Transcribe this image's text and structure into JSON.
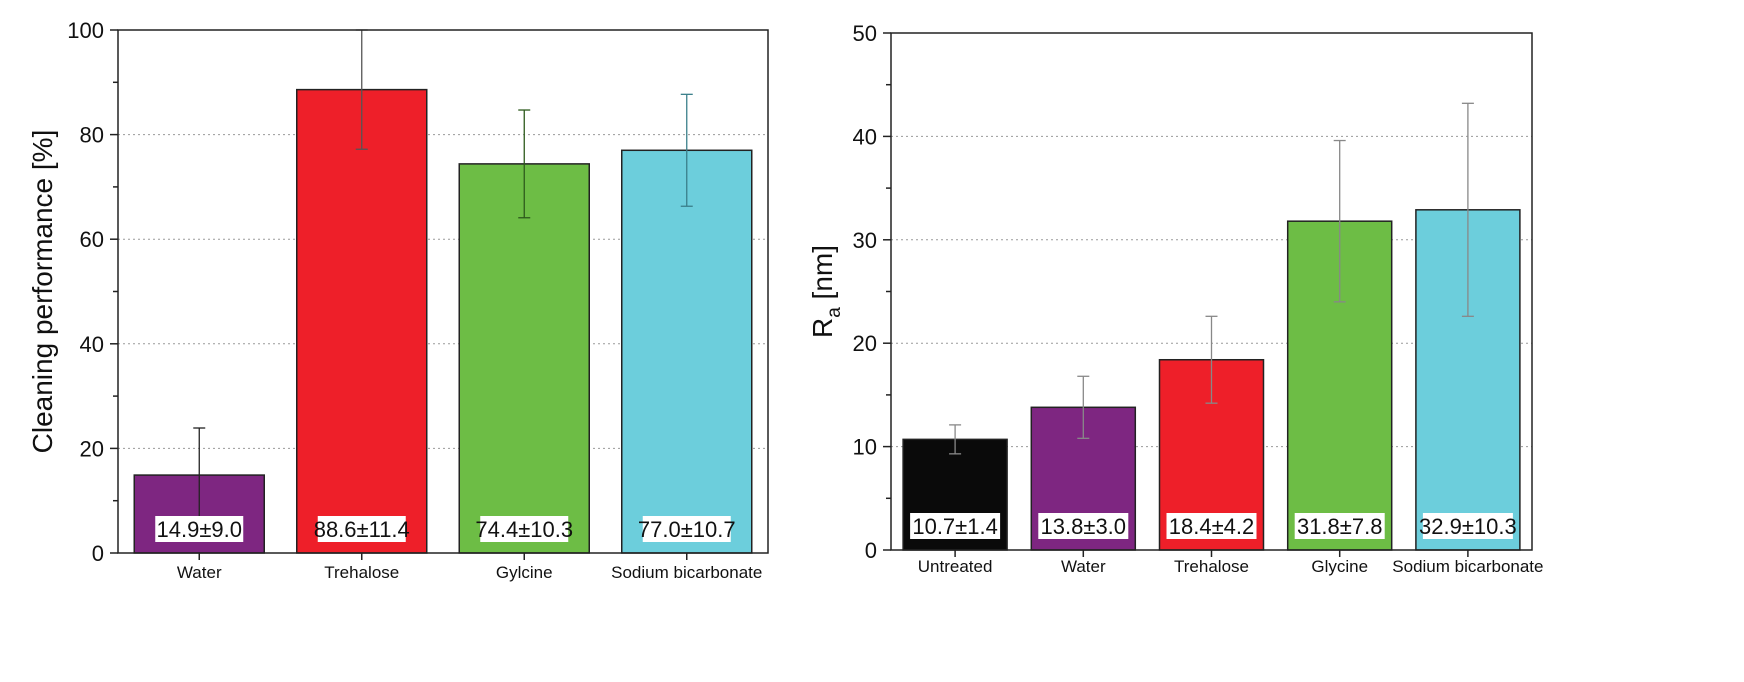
{
  "chart_data": [
    {
      "type": "bar",
      "title": "",
      "xlabel": "",
      "ylabel": "Cleaning performance [%]",
      "ylim": [
        0,
        100
      ],
      "yticks": [
        0,
        20,
        40,
        60,
        80,
        100
      ],
      "ytick_labels": [
        "0",
        "20",
        "40",
        "60",
        "80",
        "100"
      ],
      "minor_step": 10,
      "grid": true,
      "categories": [
        "Water",
        "Trehalose",
        "Gylcine",
        "Sodium bicarbonate"
      ],
      "values": [
        14.9,
        88.6,
        74.4,
        77.0
      ],
      "errors": [
        9.0,
        11.4,
        10.3,
        10.7
      ],
      "data_labels": [
        "14.9±9.0",
        "88.6±11.4",
        "74.4±10.3",
        "77.0±10.7"
      ],
      "colors": [
        "#7e2681",
        "#ee1f29",
        "#6dbd45",
        "#6ccedc"
      ],
      "error_colors": [
        "#222222",
        "#555555",
        "#2d5a1c",
        "#3a7f8a"
      ]
    },
    {
      "type": "bar",
      "title": "",
      "xlabel": "",
      "ylabel": "R",
      "ylabel_sub": "a",
      "ylabel_unit": " [nm]",
      "ylim": [
        0,
        50
      ],
      "yticks": [
        0,
        10,
        20,
        30,
        40,
        50
      ],
      "ytick_labels": [
        "0",
        "10",
        "20",
        "30",
        "40",
        "50"
      ],
      "minor_step": 5,
      "grid": true,
      "categories": [
        "Untreated",
        "Water",
        "Trehalose",
        "Glycine",
        "Sodium bicarbonate"
      ],
      "values": [
        10.7,
        13.8,
        18.4,
        31.8,
        32.9
      ],
      "errors": [
        1.4,
        3.0,
        4.2,
        7.8,
        10.3
      ],
      "data_labels": [
        "10.7±1.4",
        "13.8±3.0",
        "18.4±4.2",
        "31.8±7.8",
        "32.9±10.3"
      ],
      "colors": [
        "#0a0a0a",
        "#7e2681",
        "#ee1f29",
        "#6dbd45",
        "#6ccedc"
      ],
      "error_colors": [
        "#888888",
        "#888888",
        "#888888",
        "#888888",
        "#888888"
      ]
    }
  ]
}
